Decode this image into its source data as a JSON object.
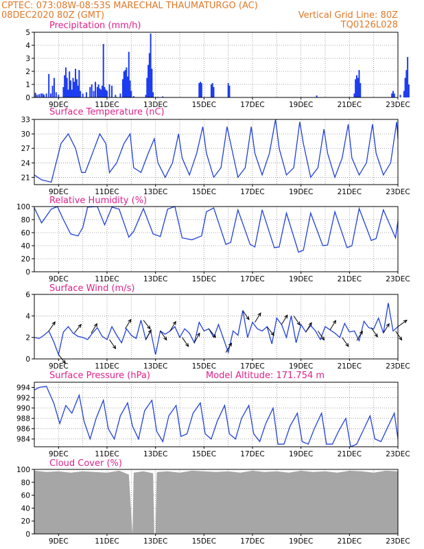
{
  "header": {
    "line1_left": "CPTEC:   073:08W-08:53S   MARECHAL THAUMATURGO (AC)",
    "line2_left": "08DEC2020 80Z (GMT)",
    "line2_right": "Vertical Grid Line: 80Z",
    "line3_right": "TQ0126L028"
  },
  "colors": {
    "header": "#e07828",
    "panel_title": "#e0208a",
    "series": "#2040d8",
    "precip_bars": "#1c3cf0",
    "cloud_fill": "#a6a6a6",
    "wind_arrow": "#000000",
    "grid": "#8a8a8a"
  },
  "x_axis": {
    "day_labels": [
      "9DEC",
      "11DEC",
      "13DEC",
      "15DEC",
      "17DEC",
      "19DEC",
      "21DEC",
      "23DEC"
    ],
    "day_label_positions_days": [
      1,
      3,
      5,
      7,
      9,
      11,
      13,
      15
    ],
    "range_days": [
      0,
      15
    ],
    "vertical_grid_every_days": 1
  },
  "chart_data": [
    {
      "type": "bar",
      "title": "Precipitation (mm/h)",
      "ylim": [
        0,
        5
      ],
      "yticks": [
        0,
        1,
        2,
        3,
        4,
        5
      ],
      "bars": [
        [
          0.05,
          0.35
        ],
        [
          0.12,
          0.2
        ],
        [
          0.2,
          0.25
        ],
        [
          0.28,
          0.3
        ],
        [
          0.35,
          0.3
        ],
        [
          0.4,
          0.2
        ],
        [
          0.5,
          0.3
        ],
        [
          0.6,
          1.8
        ],
        [
          0.68,
          0.3
        ],
        [
          0.75,
          0.9
        ],
        [
          0.82,
          1.5
        ],
        [
          0.9,
          0.4
        ],
        [
          1.0,
          0.2
        ],
        [
          1.2,
          0.8
        ],
        [
          1.25,
          1.7
        ],
        [
          1.3,
          2.3
        ],
        [
          1.35,
          1.5
        ],
        [
          1.4,
          0.6
        ],
        [
          1.45,
          2.0
        ],
        [
          1.5,
          1.3
        ],
        [
          1.55,
          0.6
        ],
        [
          1.6,
          1.5
        ],
        [
          1.65,
          1.2
        ],
        [
          1.7,
          2.2
        ],
        [
          1.75,
          1.4
        ],
        [
          1.8,
          0.9
        ],
        [
          1.85,
          2.1
        ],
        [
          1.9,
          0.5
        ],
        [
          2.0,
          0.3
        ],
        [
          2.15,
          0.4
        ],
        [
          2.3,
          0.8
        ],
        [
          2.37,
          1.0
        ],
        [
          2.45,
          0.5
        ],
        [
          2.52,
          1.2
        ],
        [
          2.6,
          0.8
        ],
        [
          2.65,
          1.0
        ],
        [
          2.7,
          0.7
        ],
        [
          2.75,
          0.6
        ],
        [
          2.8,
          0.9
        ],
        [
          2.85,
          4.1
        ],
        [
          2.9,
          0.8
        ],
        [
          2.95,
          0.6
        ],
        [
          3.0,
          0.5
        ],
        [
          3.1,
          1.0
        ],
        [
          3.2,
          0.9
        ],
        [
          3.35,
          0.2
        ],
        [
          3.55,
          0.3
        ],
        [
          3.65,
          1.4
        ],
        [
          3.7,
          2.0
        ],
        [
          3.75,
          2.1
        ],
        [
          3.8,
          2.3
        ],
        [
          3.85,
          1.6
        ],
        [
          3.9,
          3.5
        ],
        [
          3.95,
          1.3
        ],
        [
          4.0,
          0.5
        ],
        [
          4.1,
          0.1
        ],
        [
          4.6,
          0.2
        ],
        [
          4.65,
          1.5
        ],
        [
          4.7,
          2.5
        ],
        [
          4.75,
          3.4
        ],
        [
          4.8,
          4.9
        ],
        [
          4.85,
          2.2
        ],
        [
          4.9,
          0.4
        ],
        [
          5.1,
          0.05
        ],
        [
          5.3,
          0.08
        ],
        [
          6.8,
          1.1
        ],
        [
          6.85,
          1.2
        ],
        [
          6.9,
          1.1
        ],
        [
          7.3,
          1.0
        ],
        [
          7.35,
          1.1
        ],
        [
          7.4,
          0.8
        ],
        [
          8.0,
          1.1
        ],
        [
          8.05,
          0.9
        ],
        [
          11.65,
          0.15
        ],
        [
          13.2,
          0.3
        ],
        [
          13.25,
          1.4
        ],
        [
          13.3,
          1.7
        ],
        [
          13.35,
          1.5
        ],
        [
          13.4,
          2.1
        ],
        [
          13.45,
          1.1
        ],
        [
          14.75,
          0.3
        ],
        [
          14.8,
          0.5
        ],
        [
          14.85,
          0.3
        ],
        [
          15.1,
          0.2
        ],
        [
          15.25,
          0.5
        ],
        [
          15.3,
          1.5
        ],
        [
          15.35,
          2.1
        ],
        [
          15.4,
          3.1
        ],
        [
          15.45,
          1.0
        ]
      ]
    },
    {
      "type": "line",
      "title": "Surface Temperature (nC)",
      "ylim": [
        19.5,
        33
      ],
      "yticks": [
        21,
        24,
        27,
        30,
        33
      ],
      "x": [
        0,
        0.3,
        0.7,
        0.9,
        1.1,
        1.4,
        1.7,
        1.95,
        2.1,
        2.4,
        2.7,
        2.95,
        3.1,
        3.4,
        3.7,
        3.95,
        4.1,
        4.4,
        4.7,
        4.95,
        5.1,
        5.4,
        5.7,
        5.95,
        6.1,
        6.4,
        6.7,
        6.95,
        7.1,
        7.4,
        7.7,
        7.95,
        8.1,
        8.4,
        8.7,
        8.95,
        9.1,
        9.4,
        9.7,
        9.95,
        10.1,
        10.4,
        10.7,
        10.95,
        11.1,
        11.4,
        11.7,
        11.95,
        12.1,
        12.4,
        12.7,
        12.95,
        13.1,
        13.4,
        13.7,
        13.95,
        14.1,
        14.4,
        14.7,
        14.95,
        15.0
      ],
      "series": [
        {
          "values": [
            21.5,
            20.5,
            20.0,
            24,
            28,
            30,
            27,
            22,
            22,
            26,
            30,
            28,
            22,
            24,
            28,
            30,
            23,
            22,
            26,
            29,
            24,
            21,
            24,
            30,
            25,
            21.5,
            26,
            31.5,
            26,
            21,
            23,
            31.5,
            28,
            21,
            23,
            31.5,
            26,
            21.5,
            26,
            33,
            27,
            21.5,
            23,
            32.5,
            28,
            21,
            23,
            31,
            26,
            21,
            25,
            32,
            25,
            21.5,
            24,
            32,
            26,
            21.5,
            24,
            32.5,
            29
          ]
        }
      ]
    },
    {
      "type": "line",
      "title": "Relative Humidity (%)",
      "ylim": [
        0,
        100
      ],
      "yticks": [
        0,
        20,
        40,
        60,
        80,
        100
      ],
      "x": [
        0,
        0.3,
        0.7,
        0.95,
        1.2,
        1.5,
        1.8,
        2.0,
        2.2,
        2.6,
        2.9,
        3.2,
        3.5,
        3.9,
        4.1,
        4.5,
        4.9,
        5.2,
        5.5,
        5.8,
        6.1,
        6.5,
        6.9,
        7.1,
        7.4,
        7.9,
        8.1,
        8.4,
        8.9,
        9.1,
        9.4,
        9.9,
        10.1,
        10.4,
        10.9,
        11.1,
        11.4,
        11.9,
        12.1,
        12.4,
        12.9,
        13.1,
        13.4,
        13.9,
        14.1,
        14.4,
        14.9,
        15.0
      ],
      "series": [
        {
          "values": [
            98,
            75,
            96,
            100,
            80,
            58,
            55,
            68,
            99,
            100,
            72,
            99,
            96,
            53,
            62,
            97,
            58,
            54,
            96,
            100,
            52,
            49,
            55,
            92,
            98,
            42,
            45,
            95,
            42,
            38,
            95,
            37,
            38,
            90,
            30,
            33,
            90,
            40,
            41,
            92,
            37,
            40,
            97,
            48,
            51,
            95,
            52,
            78
          ]
        }
      ]
    },
    {
      "type": "line",
      "title": "Surface Wind (m/s)",
      "ylim": [
        0,
        6
      ],
      "yticks": [
        0,
        2,
        4,
        6
      ],
      "x": [
        0,
        0.2,
        0.4,
        0.6,
        0.8,
        1.0,
        1.2,
        1.4,
        1.6,
        1.8,
        2.0,
        2.2,
        2.4,
        2.6,
        2.8,
        3.0,
        3.2,
        3.4,
        3.6,
        3.8,
        4.0,
        4.2,
        4.4,
        4.6,
        4.8,
        5.0,
        5.2,
        5.4,
        5.6,
        5.8,
        6.0,
        6.2,
        6.4,
        6.6,
        6.8,
        7.0,
        7.2,
        7.4,
        7.6,
        7.8,
        8.0,
        8.2,
        8.4,
        8.6,
        8.8,
        9.0,
        9.2,
        9.4,
        9.6,
        9.8,
        10.0,
        10.2,
        10.4,
        10.6,
        10.8,
        11.0,
        11.2,
        11.4,
        11.6,
        11.8,
        12.0,
        12.2,
        12.4,
        12.6,
        12.8,
        13.0,
        13.2,
        13.4,
        13.6,
        13.8,
        14.0,
        14.2,
        14.4,
        14.6,
        14.8,
        15.0
      ],
      "series": [
        {
          "values": [
            2.0,
            1.9,
            2.2,
            2.6,
            1.6,
            0.4,
            2.5,
            3.0,
            2.4,
            2.1,
            2.0,
            1.8,
            2.4,
            2.9,
            2.1,
            1.8,
            3.0,
            2.2,
            1.5,
            2.8,
            2.2,
            1.9,
            3.6,
            1.8,
            2.6,
            0.4,
            2.6,
            2.3,
            2.6,
            3.0,
            2.0,
            2.8,
            2.4,
            1.5,
            3.4,
            2.6,
            2.8,
            2.0,
            3.2,
            1.9,
            0.6,
            2.6,
            2.2,
            4.5,
            2.0,
            3.4,
            2.8,
            2.6,
            3.0,
            1.4,
            3.8,
            3.2,
            2.0,
            4.0,
            1.5,
            3.2,
            2.5,
            3.1,
            2.6,
            1.8,
            3.0,
            2.7,
            2.4,
            2.0,
            3.3,
            2.5,
            2.6,
            1.7,
            3.5,
            2.9,
            2.8,
            3.8,
            2.4,
            5.2,
            2.6,
            3.0
          ]
        }
      ],
      "wind_vectors": [
        [
          0.6,
          0.8
        ],
        [
          1.0,
          -0.7
        ],
        [
          1.65,
          0.7
        ],
        [
          2.35,
          0.9
        ],
        [
          3.1,
          -0.8
        ],
        [
          3.75,
          0.9
        ],
        [
          4.5,
          -0.7
        ],
        [
          4.6,
          1.0
        ],
        [
          5.2,
          -0.8
        ],
        [
          5.6,
          0.9
        ],
        [
          6.1,
          -0.8
        ],
        [
          6.6,
          1.0
        ],
        [
          7.2,
          -0.7
        ],
        [
          7.9,
          0.9
        ],
        [
          8.6,
          -0.8
        ],
        [
          9.1,
          0.9
        ],
        [
          9.6,
          -0.7
        ],
        [
          10.2,
          0.9
        ],
        [
          10.7,
          -0.8
        ],
        [
          11.2,
          0.9
        ],
        [
          11.7,
          -0.8
        ],
        [
          12.2,
          0.9
        ],
        [
          12.7,
          -0.8
        ],
        [
          13.3,
          0.9
        ],
        [
          13.9,
          -0.8
        ],
        [
          14.4,
          0.9
        ],
        [
          14.9,
          -0.8
        ],
        [
          15.0,
          0.4
        ]
      ]
    },
    {
      "type": "line",
      "title": "Surface Pressure (hPa)",
      "annotation": "Model Altitude: 171.754  m",
      "ylim": [
        982.5,
        995
      ],
      "yticks": [
        984,
        986,
        988,
        990,
        992,
        994
      ],
      "x": [
        0,
        0.2,
        0.5,
        0.8,
        1.05,
        1.3,
        1.55,
        1.85,
        2.05,
        2.3,
        2.55,
        2.85,
        3.05,
        3.3,
        3.55,
        3.85,
        4.05,
        4.3,
        4.55,
        4.85,
        5.05,
        5.3,
        5.55,
        5.85,
        6.05,
        6.3,
        6.55,
        6.85,
        7.05,
        7.3,
        7.55,
        7.85,
        8.05,
        8.3,
        8.55,
        8.85,
        9.05,
        9.3,
        9.55,
        9.85,
        10.05,
        10.3,
        10.55,
        10.85,
        11.05,
        11.3,
        11.55,
        11.85,
        12.05,
        12.3,
        12.55,
        12.85,
        13.05,
        13.3,
        13.55,
        13.85,
        14.05,
        14.3,
        14.55,
        14.85,
        15.0
      ],
      "series": [
        {
          "values": [
            993.5,
            994.0,
            994.2,
            991.0,
            987.0,
            990.5,
            989.0,
            992.5,
            987.5,
            984.0,
            988.0,
            991.5,
            986.0,
            984.0,
            988.5,
            991.0,
            986.5,
            984.0,
            989.5,
            991.5,
            985.5,
            983.5,
            988.5,
            990.5,
            984.5,
            985.0,
            989.0,
            991.0,
            985.0,
            984.0,
            987.5,
            990.5,
            985.0,
            984.0,
            988.0,
            990.5,
            985.0,
            983.5,
            987.0,
            990.0,
            983.0,
            983.0,
            986.5,
            989.0,
            983.5,
            983.0,
            986.0,
            989.0,
            983.0,
            983.0,
            985.5,
            988.0,
            982.5,
            983.0,
            985.5,
            988.5,
            984.0,
            983.5,
            986.0,
            989.0,
            984.0
          ]
        }
      ]
    },
    {
      "type": "area",
      "title": "Cloud Cover (%)",
      "ylim": [
        0,
        100
      ],
      "yticks": [
        0,
        20,
        40,
        60,
        80,
        100
      ],
      "x": [
        0,
        0.5,
        1.0,
        1.5,
        2.0,
        2.5,
        3.0,
        3.5,
        3.9,
        4.0,
        4.05,
        4.1,
        4.5,
        4.9,
        4.95,
        5.0,
        5.05,
        5.1,
        5.5,
        6.0,
        6.5,
        7.0,
        7.5,
        8.0,
        8.5,
        9.0,
        9.5,
        10.0,
        10.5,
        11.0,
        11.5,
        12.0,
        12.5,
        13.0,
        13.5,
        14.0,
        14.5,
        15.0
      ],
      "series": [
        {
          "values": [
            98,
            96,
            97,
            95,
            97,
            96,
            95,
            98,
            92,
            30,
            0,
            95,
            97,
            94,
            0,
            2,
            95,
            96,
            97,
            95,
            98,
            97,
            96,
            97,
            95,
            98,
            96,
            97,
            95,
            98,
            96,
            97,
            95,
            98,
            97,
            95,
            98,
            97
          ]
        }
      ]
    }
  ]
}
